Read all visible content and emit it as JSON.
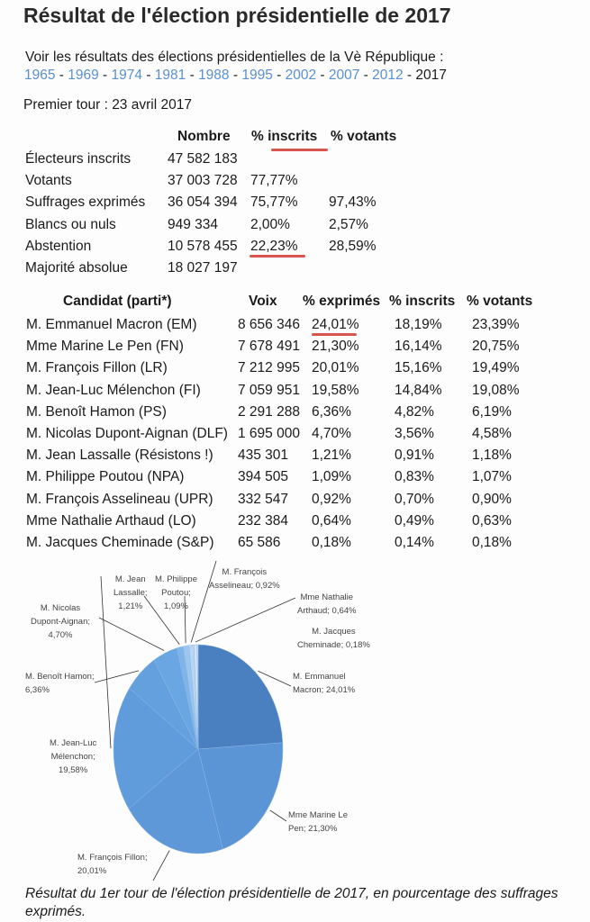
{
  "title": "Résultat de l'élection présidentielle de 2017",
  "intro": "Voir les résultats des élections présidentielles de la Vè République :",
  "years": [
    {
      "label": "1965",
      "link": true
    },
    {
      "label": "1969",
      "link": true
    },
    {
      "label": "1974",
      "link": true
    },
    {
      "label": "1981",
      "link": true
    },
    {
      "label": "1988",
      "link": true
    },
    {
      "label": "1995",
      "link": true
    },
    {
      "label": "2002",
      "link": true
    },
    {
      "label": "2007",
      "link": true
    },
    {
      "label": "2012",
      "link": true
    },
    {
      "label": "2017",
      "link": false
    }
  ],
  "round": "Premier tour : 23 avril 2017",
  "summary": {
    "headers": [
      "Nombre",
      "% inscrits",
      "% votants"
    ],
    "rows": [
      {
        "label": "Électeurs inscrits",
        "nombre": "47 582 183",
        "inscrits": "",
        "votants": ""
      },
      {
        "label": "Votants",
        "nombre": "37 003 728",
        "inscrits": "77,77%",
        "votants": ""
      },
      {
        "label": "Suffrages exprimés",
        "nombre": "36 054 394",
        "inscrits": "75,77%",
        "votants": "97,43%"
      },
      {
        "label": "Blancs ou nuls",
        "nombre": "949 334",
        "inscrits": "2,00%",
        "votants": "2,57%"
      },
      {
        "label": "Abstention",
        "nombre": "10 578 455",
        "inscrits": "22,23%",
        "votants": "28,59%"
      },
      {
        "label": "Majorité absolue",
        "nombre": "18 027 197",
        "inscrits": "",
        "votants": ""
      }
    ]
  },
  "candidates": {
    "headers": [
      "Candidat (parti*)",
      "Voix",
      "% exprimés",
      "% inscrits",
      "% votants"
    ],
    "rows": [
      {
        "name": "M. Emmanuel Macron (EM)",
        "voix": "8 656 346",
        "exprimes": "24,01%",
        "inscrits": "18,19%",
        "votants": "23,39%"
      },
      {
        "name": "Mme Marine Le Pen (FN)",
        "voix": "7 678 491",
        "exprimes": "21,30%",
        "inscrits": "16,14%",
        "votants": "20,75%"
      },
      {
        "name": "M. François Fillon (LR)",
        "voix": "7 212 995",
        "exprimes": "20,01%",
        "inscrits": "15,16%",
        "votants": "19,49%"
      },
      {
        "name": "M. Jean-Luc Mélenchon (FI)",
        "voix": "7 059 951",
        "exprimes": "19,58%",
        "inscrits": "14,84%",
        "votants": "19,08%"
      },
      {
        "name": "M. Benoît Hamon (PS)",
        "voix": "2 291 288",
        "exprimes": "6,36%",
        "inscrits": "4,82%",
        "votants": "6,19%"
      },
      {
        "name": "M. Nicolas Dupont-Aignan (DLF)",
        "voix": "1 695 000",
        "exprimes": "4,70%",
        "inscrits": "3,56%",
        "votants": "4,58%"
      },
      {
        "name": "M. Jean Lassalle (Résistons !)",
        "voix": "435 301",
        "exprimes": "1,21%",
        "inscrits": "0,91%",
        "votants": "1,18%"
      },
      {
        "name": "M. Philippe Poutou (NPA)",
        "voix": "394 505",
        "exprimes": "1,09%",
        "inscrits": "0,83%",
        "votants": "1,07%"
      },
      {
        "name": "M. François Asselineau (UPR)",
        "voix": "332 547",
        "exprimes": "0,92%",
        "inscrits": "0,70%",
        "votants": "0,90%"
      },
      {
        "name": "Mme Nathalie Arthaud (LO)",
        "voix": "232 384",
        "exprimes": "0,64%",
        "inscrits": "0,49%",
        "votants": "0,63%"
      },
      {
        "name": "M. Jacques Cheminade (S&P)",
        "voix": "65 586",
        "exprimes": "0,18%",
        "inscrits": "0,14%",
        "votants": "0,18%"
      }
    ]
  },
  "chart_data": {
    "type": "pie",
    "start": "top, clockwise",
    "slices": [
      {
        "label": "M. Emmanuel Macron; 24,01%",
        "label_lines": [
          "M. Emmanuel",
          "Macron; 24,01%"
        ],
        "value": 24.01,
        "color": "#4a7fc0"
      },
      {
        "label": "Mme Marine Le Pen; 21,30%",
        "label_lines": [
          "Mme Marine Le",
          "Pen; 21,30%"
        ],
        "value": 21.3,
        "color": "#5b95d6"
      },
      {
        "label": "M. François Fillon; 20,01%",
        "label_lines": [
          "M. François Fillon;",
          "20,01%"
        ],
        "value": 20.01,
        "color": "#5e98d9"
      },
      {
        "label": "M. Jean-Luc Mélenchon; 19,58%",
        "label_lines": [
          "M. Jean-Luc",
          "Mélenchon;",
          "19,58%"
        ],
        "value": 19.58,
        "color": "#609bdb"
      },
      {
        "label": "M. Benoît Hamon; 6,36%",
        "label_lines": [
          "M. Benoît Hamon;",
          "6,36%"
        ],
        "value": 6.36,
        "color": "#64a0de"
      },
      {
        "label": "M. Nicolas Dupont-Aignan; 4,70%",
        "label_lines": [
          "M. Nicolas",
          "Dupont-Aignan;",
          "4,70%"
        ],
        "value": 4.7,
        "color": "#6aa6e2"
      },
      {
        "label": "M. Jean Lassalle; 1,21%",
        "label_lines": [
          "M. Jean",
          "Lassalle;",
          "1,21%"
        ],
        "value": 1.21,
        "color": "#7fb4e8"
      },
      {
        "label": "M. Philippe Poutou; 1,09%",
        "label_lines": [
          "M. Philippe",
          "Poutou;",
          "1,09%"
        ],
        "value": 1.09,
        "color": "#9cc6ee"
      },
      {
        "label": "M. François Asselineau; 0,92%",
        "label_lines": [
          "M. François",
          "Asselineau; 0,92%"
        ],
        "value": 0.92,
        "color": "#b8d6f3"
      },
      {
        "label": "Mme Nathalie Arthaud; 0,64%",
        "label_lines": [
          "Mme Nathalie",
          "Arthaud; 0,64%"
        ],
        "value": 0.64,
        "color": "#d0e4f7"
      },
      {
        "label": "M. Jacques Cheminade; 0,18%",
        "label_lines": [
          "M. Jacques",
          "Cheminade; 0,18%"
        ],
        "value": 0.18,
        "color": "#e6f0fb"
      }
    ]
  },
  "caption": "Résultat du 1er tour de l'élection présidentielle de 2017, en pourcentage des suffrages exprimés.",
  "colors": {
    "link": "#5b8fd0",
    "annotation": "#d9534f"
  }
}
